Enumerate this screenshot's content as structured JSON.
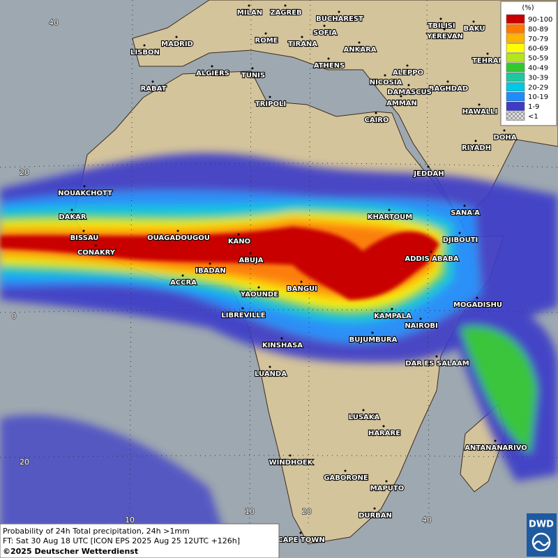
{
  "map": {
    "cities": [
      "MILAN",
      "ZAGREB",
      "BUCHAREST",
      "TBILISI",
      "BAKU",
      "SOFIA",
      "YEREVAN",
      "ROME",
      "TIRANA",
      "LISBON",
      "MADRID",
      "ANKARA",
      "TEHRAN",
      "ATHENS",
      "ALGIERS",
      "TUNIS",
      "ALEPPO",
      "RABAT",
      "NICOSIA",
      "BAGHDAD",
      "DAMASCUS",
      "AMMAN",
      "TRIPOLI",
      "HAWALLI",
      "CAIRO",
      "DOHA",
      "RIYADH",
      "JEDDAH",
      "NOUAKCHOTT",
      "SANA'A",
      "KHARTOUM",
      "DAKAR",
      "DJIBOUTI",
      "BISSAU",
      "OUAGADOUGOU",
      "KANO",
      "CONAKRY",
      "ABUJA",
      "ADDIS ABABA",
      "IBADAN",
      "ACCRA",
      "BANGUI",
      "YAOUNDE",
      "MOGADISHU",
      "LIBREVILLE",
      "KAMPALA",
      "NAIROBI",
      "KINSHASA",
      "BUJUMBURA",
      "DAR ES SALAAM",
      "LUANDA",
      "LUSAKA",
      "HARARE",
      "ANTANANARIVO",
      "WINDHOEK",
      "GABORONE",
      "MAPUTO",
      "DURBAN",
      "CAPE TOWN"
    ],
    "latitude_labels": [
      "40",
      "20",
      "0",
      "20"
    ],
    "longitude_labels": [
      "10",
      "10",
      "20",
      "40"
    ]
  },
  "legend": {
    "unit": "(%)",
    "entries": [
      {
        "label": "90-100",
        "color": "#c80000"
      },
      {
        "label": "80-89",
        "color": "#ff7800"
      },
      {
        "label": "70-79",
        "color": "#ffb400"
      },
      {
        "label": "60-69",
        "color": "#ffff00"
      },
      {
        "label": "50-59",
        "color": "#b4e61e"
      },
      {
        "label": "40-49",
        "color": "#32c832"
      },
      {
        "label": "30-39",
        "color": "#1ec8a0"
      },
      {
        "label": "20-29",
        "color": "#00c8e6"
      },
      {
        "label": "10-19",
        "color": "#1e8cff"
      },
      {
        "label": "1-9",
        "color": "#3c3cc8"
      },
      {
        "label": "<1",
        "color": "#c8c8c8"
      }
    ]
  },
  "footer": {
    "lines": [
      "Probability of 24h Total precipitation, 24h >1mm",
      "FT: Sat 30 Aug 18 UTC [ICON EPS 2025 Aug 25 12UTC +126h]"
    ],
    "copyright": "©2025 Deutscher Wetterdienst"
  },
  "logo": "DWD"
}
